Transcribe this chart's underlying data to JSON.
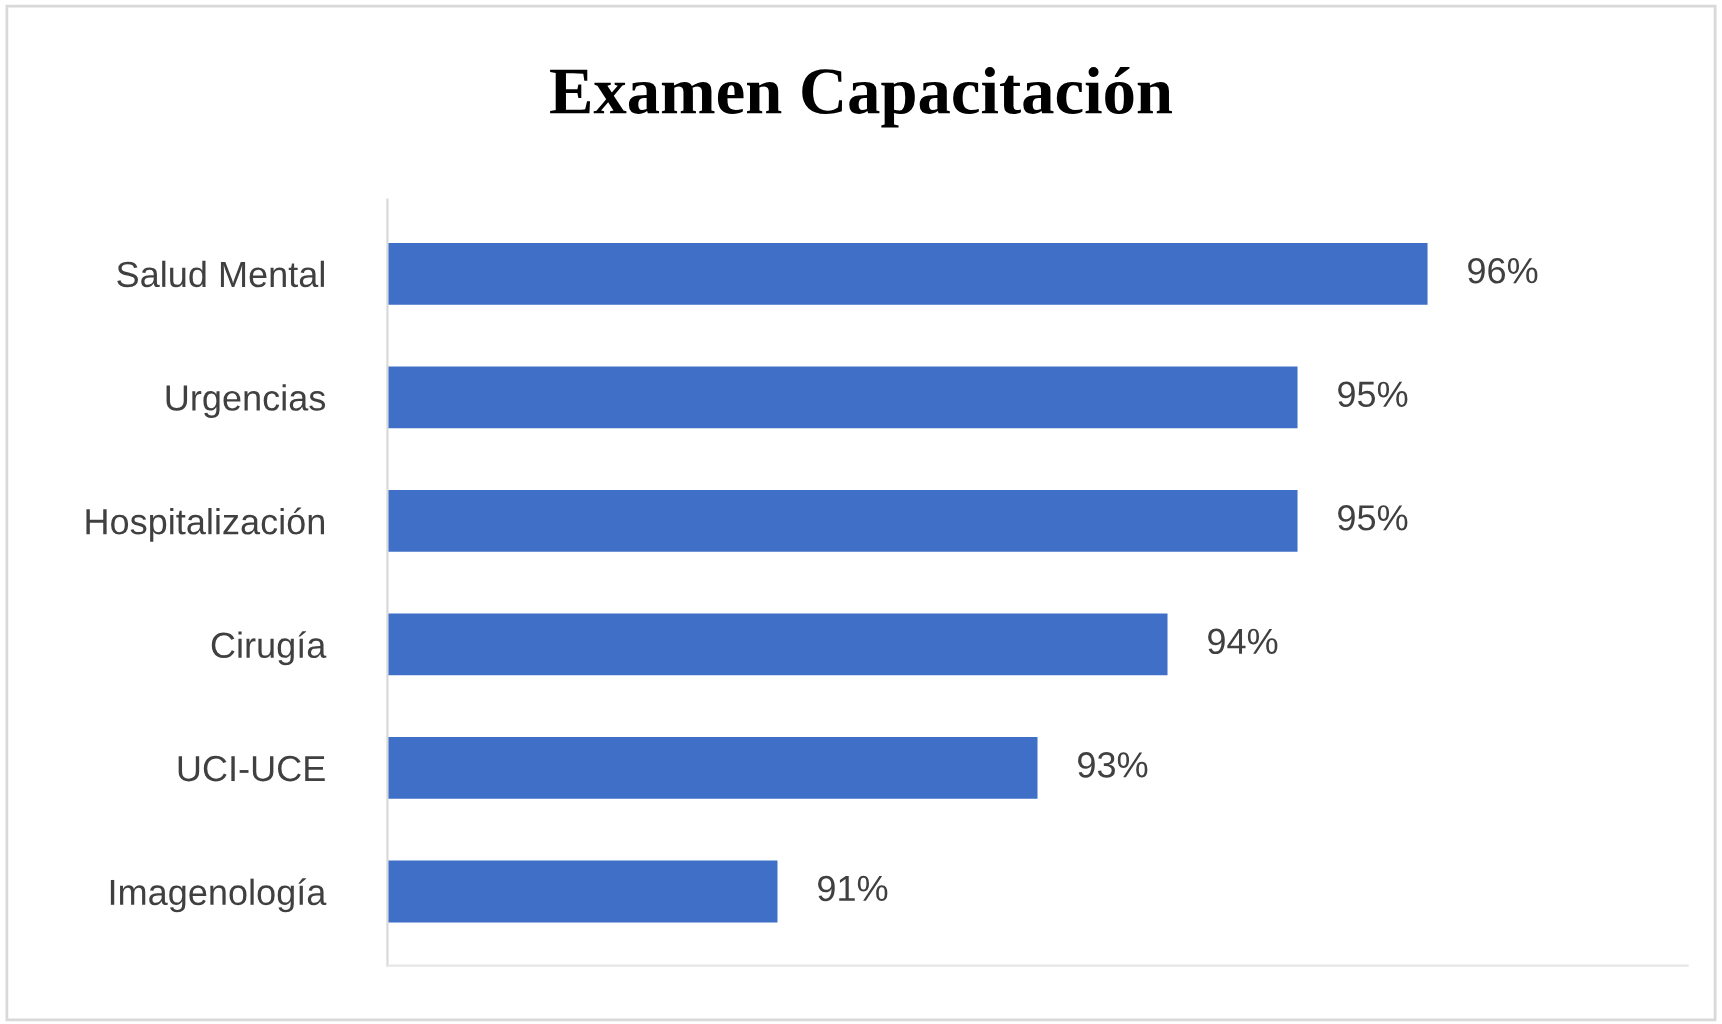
{
  "chart_data": {
    "type": "bar",
    "orientation": "horizontal",
    "title": "Examen Capacitación",
    "categories": [
      "Salud Mental",
      "Urgencias",
      "Hospitalización",
      "Cirugía",
      "UCI-UCE",
      "Imagenología"
    ],
    "values": [
      96,
      95,
      95,
      94,
      93,
      91
    ],
    "value_labels": [
      "96%",
      "95%",
      "95%",
      "94%",
      "93%",
      "91%"
    ],
    "color": "#3f6fc6",
    "xlim": [
      88,
      98
    ],
    "tick_labels": "y",
    "grid": false,
    "legend": false
  }
}
